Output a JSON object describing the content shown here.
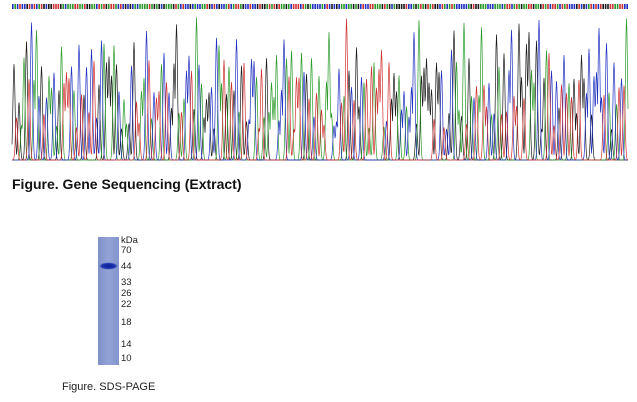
{
  "figures": [
    {
      "caption": "Figure. Gene Sequencing (Extract)"
    },
    {
      "caption": "Figure. SDS-PAGE",
      "unit": "kDa",
      "markers": [
        "70",
        "44",
        "33",
        "26",
        "22",
        "18",
        "14",
        "10"
      ]
    }
  ]
}
